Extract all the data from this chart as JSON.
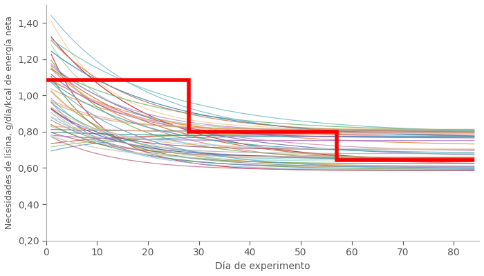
{
  "xlabel": "Día de experimento",
  "ylabel": "Necesidades de lisina, g/día/kcal de energía neta",
  "xlim": [
    0,
    85
  ],
  "ylim": [
    0.2,
    1.5
  ],
  "yticks": [
    0.2,
    0.4,
    0.6,
    0.8,
    1.0,
    1.2,
    1.4
  ],
  "xticks": [
    0,
    10,
    20,
    30,
    40,
    50,
    60,
    70,
    80
  ],
  "red_step": {
    "x": [
      0,
      28,
      28,
      57,
      57,
      84
    ],
    "y": [
      1.085,
      1.085,
      0.8,
      0.8,
      0.645,
      0.645
    ]
  },
  "pig_colors": [
    "#f4a0a0",
    "#e88080",
    "#d05050",
    "#c03030",
    "#b02020",
    "#f4b4b4",
    "#e8c0c0",
    "#c86060",
    "#f4a060",
    "#e88840",
    "#c07030",
    "#f4d090",
    "#e8c060",
    "#d0a040",
    "#a0c870",
    "#80b050",
    "#609040",
    "#a0d0a0",
    "#70b870",
    "#50a050",
    "#80c8c0",
    "#50b0b0",
    "#309090",
    "#80b8d8",
    "#50a0c8",
    "#3080b0",
    "#9090d8",
    "#7070c0",
    "#5050a8",
    "#c090d0",
    "#a870c0",
    "#9050b0",
    "#d890b0",
    "#c07090",
    "#a05070",
    "#b0b0b0",
    "#909090",
    "#787878",
    "#f0c0a0",
    "#e0a080",
    "#c07860",
    "#a0d8d0",
    "#70c0c0",
    "#40a8a8",
    "#f0d0b0",
    "#e0c090",
    "#c8a870",
    "#b8d8f0",
    "#90c0e8",
    "#60a8d8",
    "#d0e0a0",
    "#b8d080",
    "#90b860"
  ],
  "n_pigs": 50,
  "figsize": [
    7.0,
    4.0
  ],
  "dpi": 100
}
